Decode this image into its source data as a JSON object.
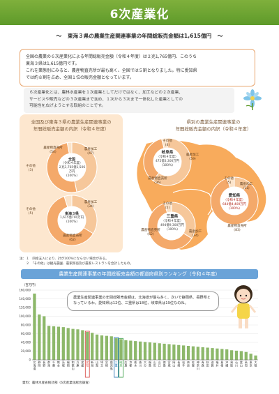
{
  "header": {
    "title": "6次産業化"
  },
  "subtitle": {
    "left_mark": "〜",
    "text": "東海３県の農業生産関連事業の年間総販売金額は1,615億円",
    "right_mark": "〜"
  },
  "intro": {
    "line1": "全国の農業の６次産業化による年間総販売金額（令和４年度）は２兆1,765億円、このうち",
    "line2": "東海３県は1,615億円です。",
    "line3": "これを業態別にみると、農産物直売所が最も高く、全国では５割となりました。特に愛知県",
    "line4": "では約８割を占め、全国１位の販売金額となっています。"
  },
  "definition": {
    "line1": "６次産業化とは、農林水産業を１次産業としてだけではなく、加工などの２次産業、",
    "line2": "サービスや販売などの３次産業まで含め、１次から３次まで一体化した産業としての",
    "line3": "可能性を広げようとする取組のことです。"
  },
  "left_panel": {
    "title1": "全国及び東海３県の農業生産関連事業の",
    "title2": "年間総販売金額の内訳（令和４年度）",
    "donut_national": {
      "center1": "全国",
      "center2": "（令和４年度）",
      "center3": "２兆1,765億1,506万円",
      "center4": "(100%)",
      "labels": [
        {
          "name": "農産物直売所",
          "pct": "(50)"
        },
        {
          "name": "農産加工",
          "pct": "(47)"
        },
        {
          "name": "その他",
          "pct": "(3)"
        }
      ],
      "segments": [
        50,
        47,
        3
      ]
    },
    "donut_tokai": {
      "center1": "東海３県",
      "center2": "1,615億790万円",
      "center3": "(100%)",
      "labels": [
        {
          "name": "農産加工",
          "pct": "(34)"
        },
        {
          "name": "農産物直売所",
          "pct": "(62)"
        },
        {
          "name": "その他",
          "pct": "(5)"
        }
      ],
      "segments": [
        34,
        62,
        5
      ]
    }
  },
  "right_panel": {
    "title1": "県別の農業生産関連事業の",
    "title2": "年間総販売金額の内訳（令和４年度）",
    "gifu": {
      "name": "岐阜県",
      "year": "（令和４年度）",
      "amount": "475億3,300万円",
      "pct": "(100%)",
      "labels": [
        {
          "name": "その他",
          "pct": "(4)"
        },
        {
          "name": "農産加工",
          "pct": "(59)"
        },
        {
          "name": "農産物直売所",
          "pct": "(36)"
        }
      ]
    },
    "aichi": {
      "name": "愛知県",
      "year": "（令和４年度）",
      "amount": "644億4,400万円",
      "pct": "(100%)",
      "labels": [
        {
          "name": "その他",
          "pct": "(5)"
        },
        {
          "name": "農産加工",
          "pct": "(11)"
        },
        {
          "name": "農産物直売所",
          "pct": "(83)"
        }
      ]
    },
    "mie": {
      "name": "三重県",
      "year": "（令和４年度）",
      "amount": "494億9,300万円",
      "pct": "(100%)",
      "labels": [
        {
          "name": "その他",
          "pct": "(5)"
        },
        {
          "name": "農産物直売所",
          "pct": "(62)"
        },
        {
          "name": "農産加工",
          "pct": "(34)"
        }
      ]
    }
  },
  "notes": {
    "n1": "注：１　四捨五入により、計が100%にならない場合がある。",
    "n2": "　　２　「その他」は観光農園、農家民宿及び農家レストランを合計したもの。"
  },
  "ranking": {
    "title": "農業生産関連事業の年間総販売金額の都道府県別ランキング（令和４年度）",
    "unit": "（百万円）",
    "bubble1": "農業生産関連事業の年間総販売金額は、北海道が最も多く、次いで静岡県、長野県と",
    "bubble2": "なっているわ。愛知県は12位、三重県は18位、岐阜県は19位なのね。"
  },
  "chart_data": {
    "type": "bar",
    "title": "農業生産関連事業の年間総販売金額の都道府県別ランキング（令和４年度）",
    "ylabel": "（百万円）",
    "ylim": [
      0,
      160000
    ],
    "yticks": [
      "160,000",
      "140,000",
      "120,000",
      "100,000",
      "80,000",
      "60,000",
      "40,000",
      "20,000",
      "0"
    ],
    "highlight": [
      "愛知",
      "三重",
      "岐阜"
    ],
    "highlight_colors": {
      "愛知": "#d9534f",
      "三重": "#2f7ab7",
      "岐阜": "#3fa14a"
    },
    "categories": [
      "北海道",
      "静岡",
      "長野",
      "群馬",
      "千葉",
      "熊本",
      "茨城",
      "福岡",
      "和歌山",
      "兵庫",
      "愛媛",
      "愛知",
      "新潟",
      "山梨",
      "埼玉",
      "宮崎",
      "鹿児島",
      "三重",
      "岐阜",
      "広島",
      "京都",
      "栃木",
      "香川",
      "大分",
      "福島",
      "山形",
      "山口",
      "徳島",
      "宮城",
      "岡山",
      "長崎",
      "岩手",
      "奈良",
      "佐賀",
      "神奈川",
      "青森",
      "秋田",
      "滋賀",
      "福井",
      "島根",
      "沖縄",
      "鳥取",
      "石川",
      "富山",
      "高知",
      "東京",
      "大阪"
    ],
    "values": [
      152000,
      104000,
      100000,
      78000,
      77000,
      76000,
      75000,
      73000,
      71000,
      70000,
      68000,
      64000,
      62000,
      58000,
      56000,
      55000,
      54000,
      49500,
      47500,
      45000,
      44000,
      43000,
      42000,
      41000,
      40000,
      39000,
      38000,
      37000,
      36000,
      35000,
      34000,
      33000,
      32000,
      31000,
      30000,
      29000,
      28000,
      27000,
      26000,
      25000,
      24000,
      22000,
      21000,
      20000,
      18000,
      14000,
      10000
    ]
  },
  "source": "資料：農林水産省統計部（6次産業化総合調査）",
  "colors": {
    "header_green": "#6aa535",
    "direct_sales": "#f4a96a",
    "processing": "#f6c79a",
    "other": "#fbe3c9",
    "panel_bg": "#fde7cf"
  }
}
